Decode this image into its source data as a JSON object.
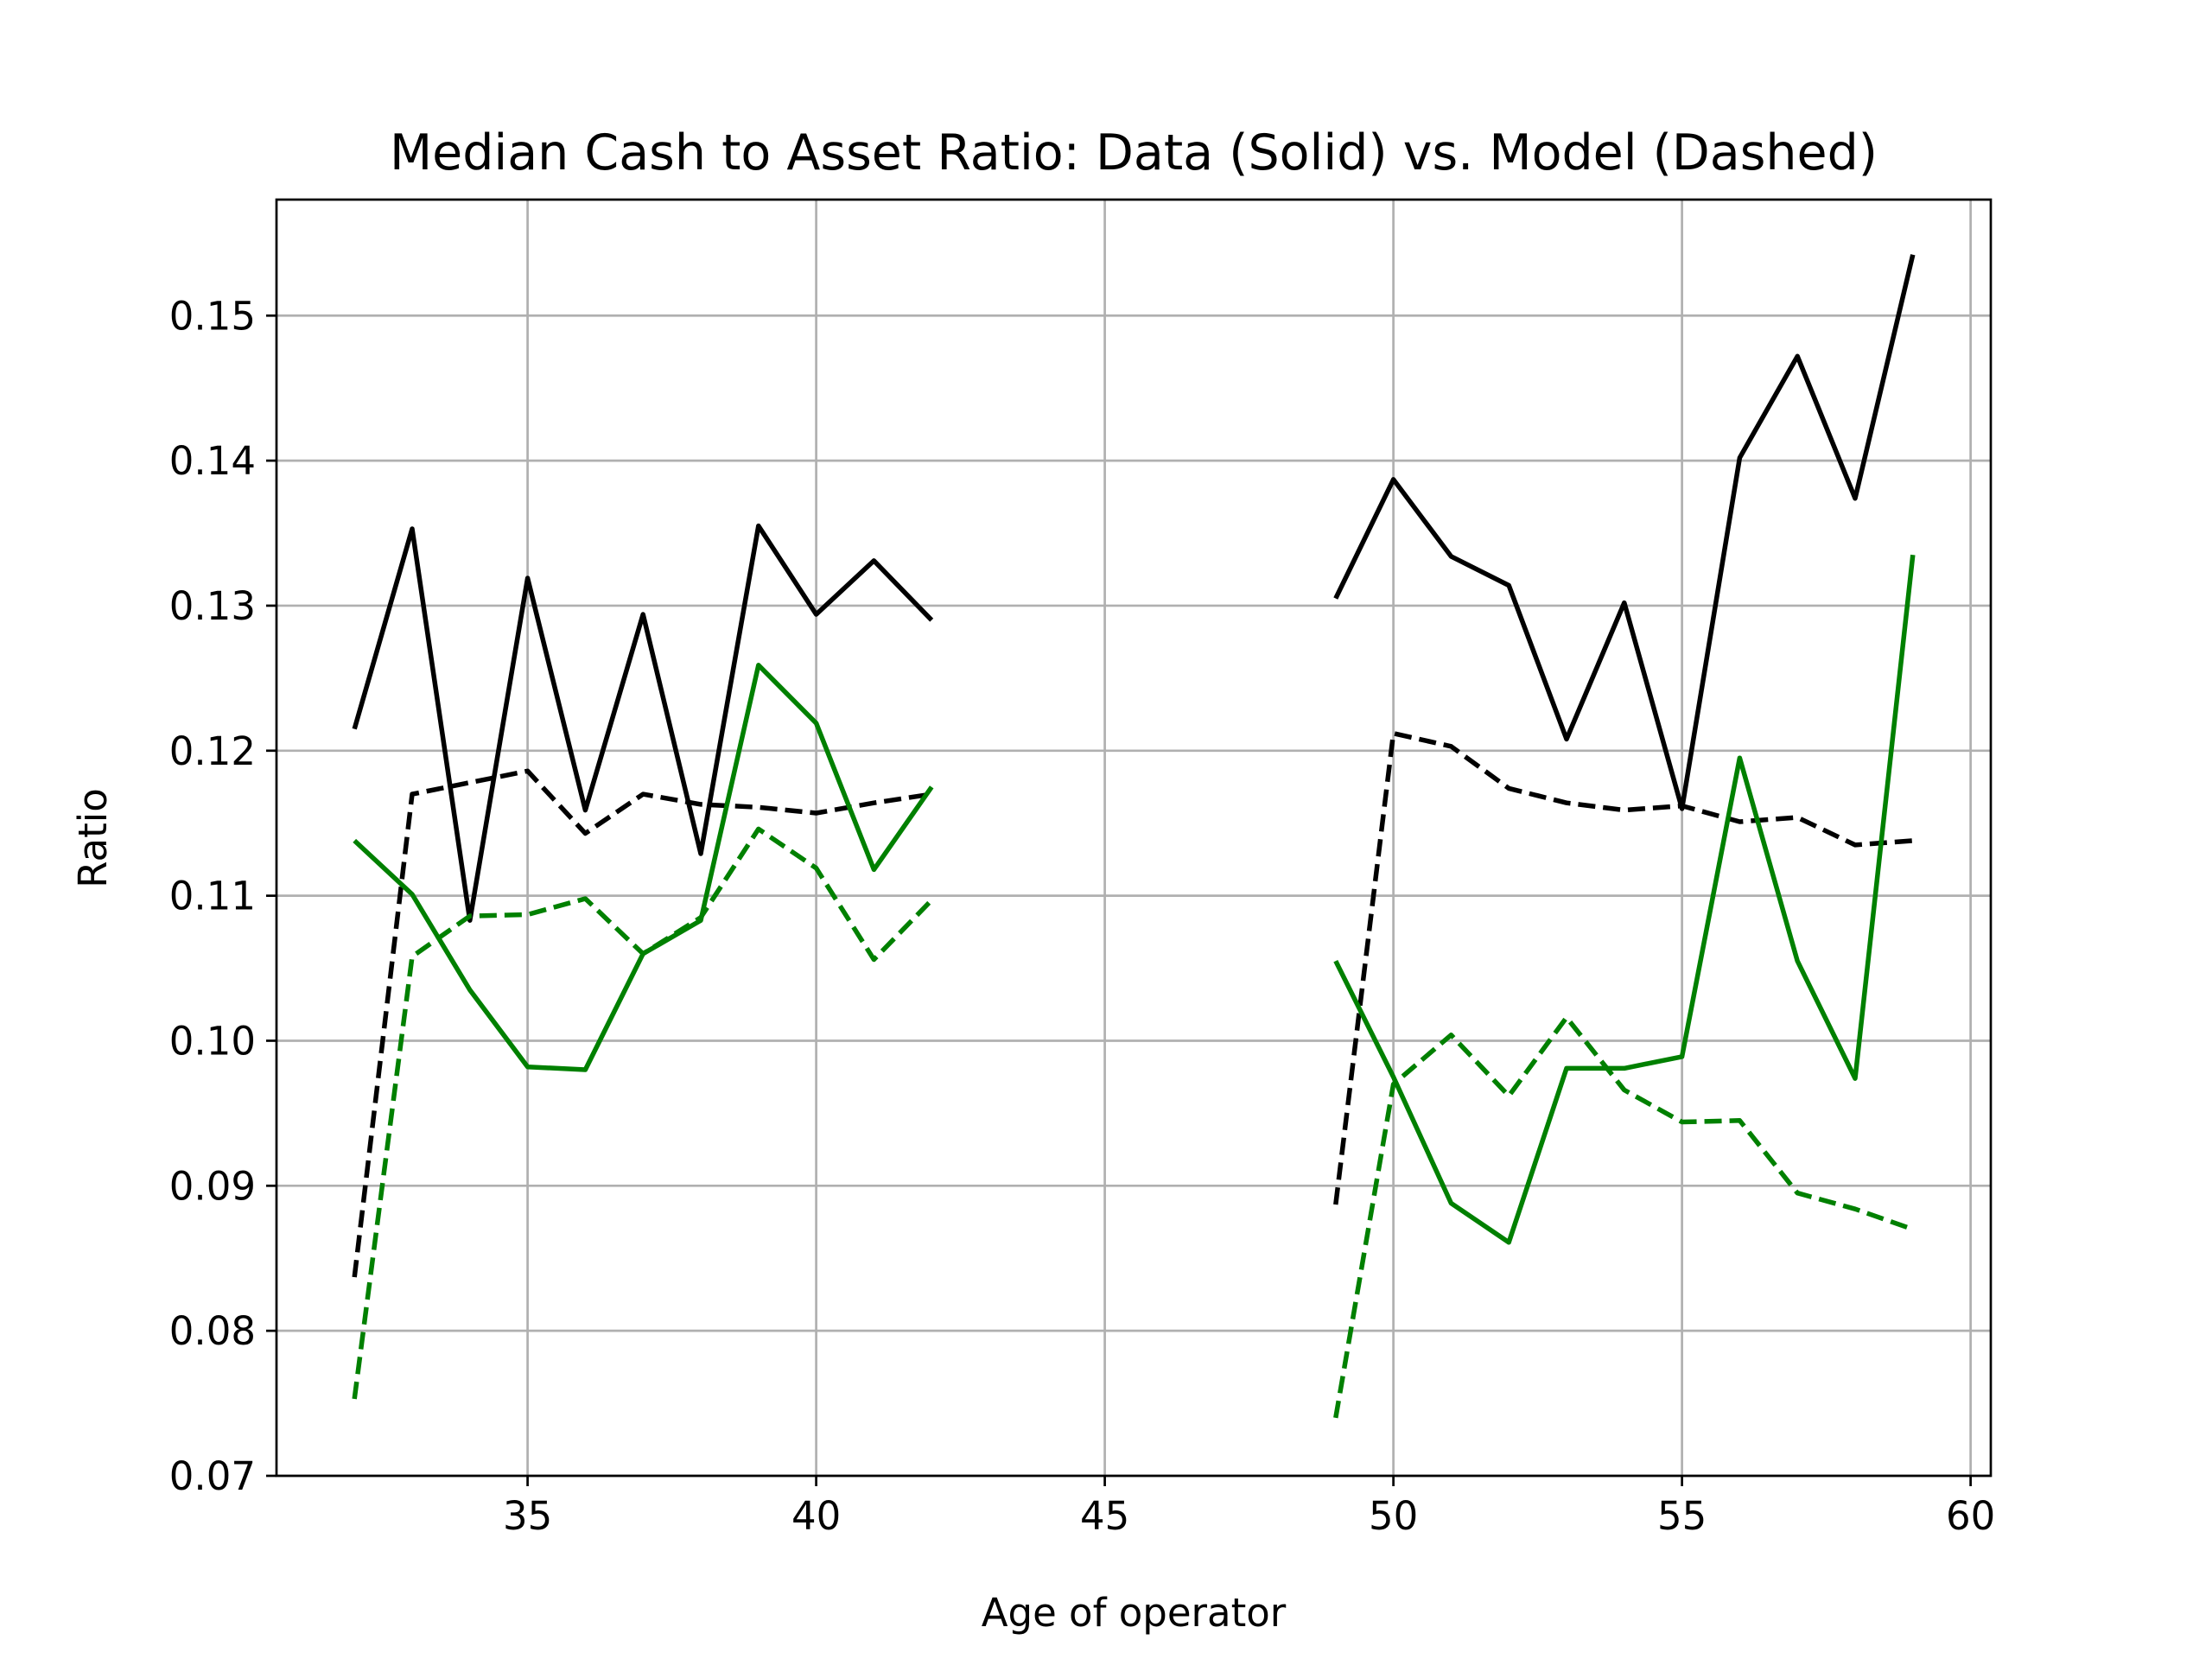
{
  "chart_data": {
    "type": "line",
    "title": "Median Cash to Asset Ratio: Data (Solid) vs. Model (Dashed)",
    "xlabel": "Age of operator",
    "ylabel": "Ratio",
    "xlim": [
      30.65,
      60.35
    ],
    "ylim": [
      0.07,
      0.158
    ],
    "xticks": [
      35,
      40,
      45,
      50,
      55,
      60
    ],
    "yticks": [
      0.07,
      0.08,
      0.09,
      0.1,
      0.11,
      0.12,
      0.13,
      0.14,
      0.15
    ],
    "xtick_labels": [
      "35",
      "40",
      "45",
      "50",
      "55",
      "60"
    ],
    "ytick_labels": [
      "0.07",
      "0.08",
      "0.09",
      "0.10",
      "0.11",
      "0.12",
      "0.13",
      "0.14",
      "0.15"
    ],
    "grid": true,
    "series": [
      {
        "color": "#000000",
        "style": "solid",
        "segments": [
          {
            "x": [
              32,
              33,
              34,
              35,
              36,
              37,
              38,
              39,
              40,
              41,
              42
            ],
            "y": [
              0.1215,
              0.1353,
              0.1083,
              0.1319,
              0.1159,
              0.1294,
              0.1129,
              0.1355,
              0.1294,
              0.1331,
              0.129
            ]
          },
          {
            "x": [
              49,
              50,
              51,
              52,
              53,
              54,
              55,
              56,
              57,
              58,
              59
            ],
            "y": [
              0.1305,
              0.1387,
              0.1334,
              0.1314,
              0.1208,
              0.1302,
              0.116,
              0.1402,
              0.1472,
              0.1374,
              0.1542
            ]
          }
        ]
      },
      {
        "color": "#000000",
        "style": "dashed",
        "segments": [
          {
            "x": [
              32,
              33,
              34,
              35,
              36,
              37,
              38,
              39,
              40,
              41,
              42
            ],
            "y": [
              0.0837,
              0.117,
              0.1178,
              0.1186,
              0.1143,
              0.117,
              0.1163,
              0.1161,
              0.1157,
              0.1164,
              0.117
            ]
          },
          {
            "x": [
              49,
              50,
              51,
              52,
              53,
              54,
              55,
              56,
              57,
              58,
              59
            ],
            "y": [
              0.0887,
              0.1212,
              0.1203,
              0.1174,
              0.1164,
              0.1159,
              0.1162,
              0.1151,
              0.1154,
              0.1135,
              0.1138
            ]
          }
        ]
      },
      {
        "color": "#008000",
        "style": "solid",
        "segments": [
          {
            "x": [
              32,
              33,
              34,
              35,
              36,
              37,
              38,
              39,
              40,
              41,
              42
            ],
            "y": [
              0.1138,
              0.1101,
              0.1035,
              0.0982,
              0.098,
              0.106,
              0.1083,
              0.1259,
              0.1219,
              0.1118,
              0.1175
            ]
          },
          {
            "x": [
              49,
              50,
              51,
              52,
              53,
              54,
              55,
              56,
              57,
              58,
              59
            ],
            "y": [
              0.1055,
              0.0975,
              0.0888,
              0.0861,
              0.0981,
              0.0981,
              0.0989,
              0.1195,
              0.1055,
              0.0974,
              0.1335
            ]
          }
        ]
      },
      {
        "color": "#008000",
        "style": "dashed",
        "segments": [
          {
            "x": [
              32,
              33,
              34,
              35,
              36,
              37,
              38,
              39,
              40,
              41,
              42
            ],
            "y": [
              0.0753,
              0.1058,
              0.1086,
              0.1087,
              0.1098,
              0.106,
              0.1085,
              0.1146,
              0.1119,
              0.1056,
              0.1097
            ]
          },
          {
            "x": [
              49,
              50,
              51,
              52,
              53,
              54,
              55,
              56,
              57,
              58,
              59
            ],
            "y": [
              0.074,
              0.097,
              0.1004,
              0.0962,
              0.1016,
              0.0966,
              0.0944,
              0.0945,
              0.0895,
              0.0884,
              0.087
            ]
          }
        ]
      }
    ]
  }
}
